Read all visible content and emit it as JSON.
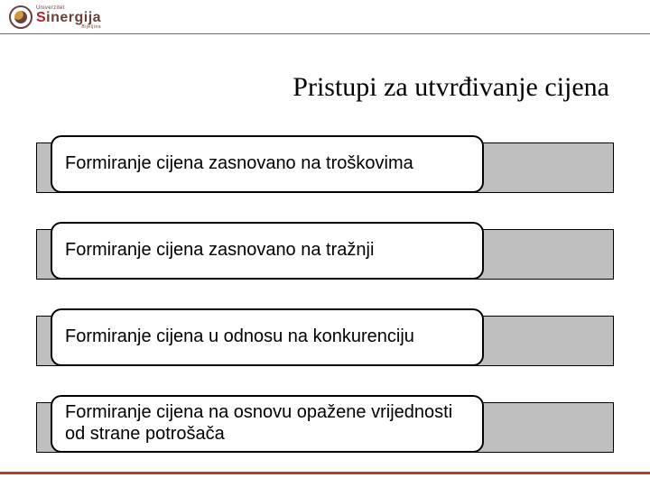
{
  "logo": {
    "top_line": "Univerzitet",
    "name_part1": "S",
    "name_part2": "inergija",
    "sub_line": "Bijeljina"
  },
  "title": "Pristupi za utvrđivanje cijena",
  "items": [
    {
      "text": "Formiranje cijena zasnovano na troškovima"
    },
    {
      "text": "Formiranje cijena zasnovano na tražnji"
    },
    {
      "text": "Formiranje cijena u odnosu na konkurenciju"
    },
    {
      "text": "Formiranje cijena na osnovu opažene vrijednosti od strane potrošača"
    }
  ],
  "styling": {
    "slide_width": 720,
    "slide_height": 540,
    "background_color": "#ffffff",
    "title_font_family": "Times New Roman",
    "title_font_size": 30,
    "title_color": "#000000",
    "body_font_family": "Arial",
    "body_font_size": 20,
    "body_color": "#000000",
    "bar_fill": "#bfbfbf",
    "bar_border": "#000000",
    "box_fill": "#ffffff",
    "box_border": "#000000",
    "box_border_width": 2,
    "box_border_radius": 12,
    "footer_line_color": "#c0392b",
    "header_underline_color": "#b84b4b",
    "logo_red": "#b22222",
    "logo_brown": "#6a403a",
    "item_bar_width": 640,
    "item_bar_height": 56,
    "item_box_width": 480,
    "item_box_height": 64,
    "item_spacing": 24
  }
}
